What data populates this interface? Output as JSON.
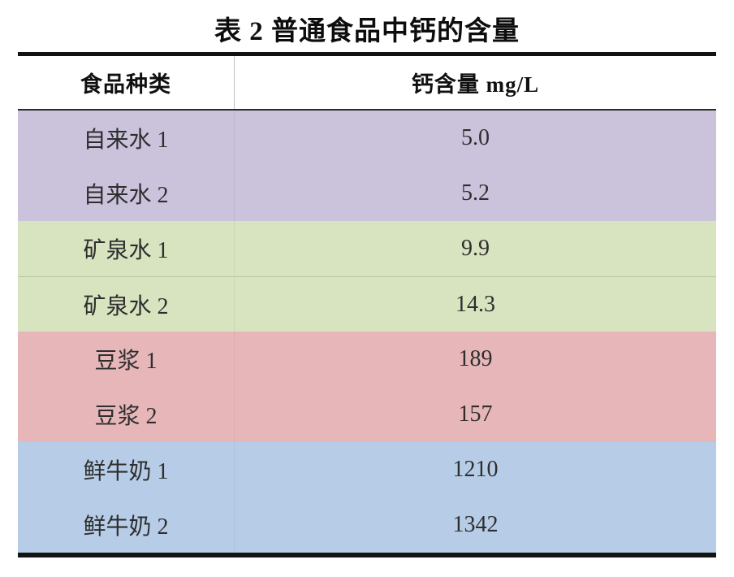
{
  "title": "表 2 普通食品中钙的含量",
  "table": {
    "columns": [
      {
        "key": "food_type",
        "label": "食品种类"
      },
      {
        "key": "calcium",
        "label": "钙含量 mg/L"
      }
    ],
    "rows": [
      {
        "label": "自来水 1",
        "value": "5.0",
        "group": "tap-water"
      },
      {
        "label": "自来水 2",
        "value": "5.2",
        "group": "tap-water"
      },
      {
        "label": "矿泉水 1",
        "value": "9.9",
        "group": "mineral-water"
      },
      {
        "label": "矿泉水 2",
        "value": "14.3",
        "group": "mineral-water"
      },
      {
        "label": "豆浆 1",
        "value": "189",
        "group": "soy-milk"
      },
      {
        "label": "豆浆 2",
        "value": "157",
        "group": "soy-milk"
      },
      {
        "label": "鲜牛奶 1",
        "value": "1210",
        "group": "fresh-milk"
      },
      {
        "label": "鲜牛奶 2",
        "value": "1342",
        "group": "fresh-milk"
      }
    ],
    "group_colors": {
      "tap-water": "#cbc2dc",
      "mineral-water": "#d8e3c0",
      "soy-milk": "#e7b6b9",
      "fresh-milk": "#b7cde7"
    },
    "border_color": "#131313"
  },
  "chart_data": {
    "type": "table",
    "title": "表 2 普通食品中钙的含量",
    "columns": [
      "食品种类",
      "钙含量 mg/L"
    ],
    "rows": [
      [
        "自来水 1",
        5.0
      ],
      [
        "自来水 2",
        5.2
      ],
      [
        "矿泉水 1",
        9.9
      ],
      [
        "矿泉水 2",
        14.3
      ],
      [
        "豆浆 1",
        189
      ],
      [
        "豆浆 2",
        157
      ],
      [
        "鲜牛奶 1",
        1210
      ],
      [
        "鲜牛奶 2",
        1342
      ]
    ]
  }
}
